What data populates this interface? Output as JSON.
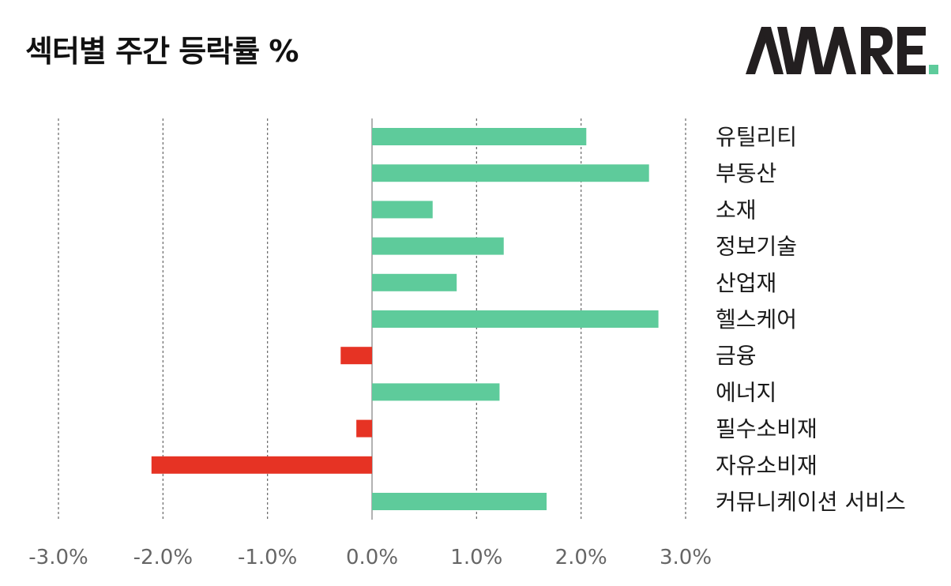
{
  "header": {
    "title": "섹터별 주간 등락률 %",
    "logo_text": "AWARE",
    "logo_colors": {
      "letters": "#231f20",
      "accent": "#5ecb9b"
    }
  },
  "chart_data": {
    "type": "bar",
    "orientation": "horizontal",
    "title": "섹터별 주간 등락률 %",
    "categories": [
      "유틸리티",
      "부동산",
      "소재",
      "정보기술",
      "산업재",
      "헬스케어",
      "금융",
      "에너지",
      "필수소비재",
      "자유소비재",
      "커뮤니케이션 서비스"
    ],
    "values": [
      2.05,
      2.65,
      0.58,
      1.26,
      0.81,
      2.74,
      -0.3,
      1.22,
      -0.15,
      -2.11,
      1.67
    ],
    "xlim": [
      -3.0,
      3.0
    ],
    "xticks": [
      "-3.0%",
      "-2.0%",
      "-1.0%",
      "0.0%",
      "1.0%",
      "2.0%",
      "3.0%"
    ],
    "xtick_values": [
      -3,
      -2,
      -1,
      0,
      1,
      2,
      3
    ],
    "grid": "vertical dashed",
    "colors": {
      "positive": "#5ecb9b",
      "negative": "#e63324",
      "grid": "#666666",
      "zero_line": "#999999"
    },
    "category_label_position": "right"
  }
}
